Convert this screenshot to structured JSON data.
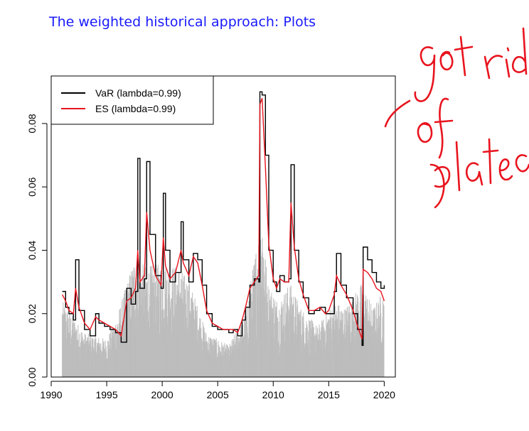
{
  "slide": {
    "title": "The weighted historical approach: Plots"
  },
  "annotation": {
    "handwritten_text": "got rid of plateaus",
    "ink_color": "#e8141e"
  },
  "chart_data": {
    "type": "line",
    "title": "",
    "xlabel": "",
    "ylabel": "",
    "xlim": [
      1990,
      2021
    ],
    "ylim": [
      0,
      0.095
    ],
    "x_ticks": [
      1990,
      1995,
      2000,
      2005,
      2010,
      2015,
      2020
    ],
    "x_tick_labels": [
      "1990",
      "1995",
      "2000",
      "2005",
      "2010",
      "2015",
      "2020"
    ],
    "y_ticks": [
      0,
      0.02,
      0.04,
      0.06,
      0.08
    ],
    "y_tick_labels": [
      "0.00",
      "0.02",
      "0.04",
      "0.06",
      "0.08"
    ],
    "legend_position": "top-left",
    "grid": false,
    "background_bars": {
      "description": "absolute daily losses shown as grey vertical bars",
      "color": "#bdbdbd",
      "x": [
        1991.0,
        1993.0,
        1995.0,
        1996.0,
        1997.5,
        1998.5,
        2000.0,
        2001.5,
        2002.5,
        2004.0,
        2006.0,
        2007.5,
        2008.5,
        2009.0,
        2009.5,
        2010.5,
        2011.5,
        2012.5,
        2014.0,
        2015.5,
        2016.5,
        2018.0,
        2019.0,
        2020.0
      ],
      "upper_envelope": [
        0.024,
        0.014,
        0.012,
        0.02,
        0.038,
        0.035,
        0.036,
        0.035,
        0.03,
        0.014,
        0.01,
        0.02,
        0.042,
        0.053,
        0.03,
        0.024,
        0.03,
        0.022,
        0.016,
        0.024,
        0.022,
        0.03,
        0.022,
        0.028
      ]
    },
    "series": [
      {
        "name": "VaR (lambda=0.99)",
        "color": "#000000",
        "x": [
          1991.0,
          1991.3,
          1991.6,
          1992.0,
          1992.2,
          1992.5,
          1993.0,
          1993.5,
          1994.0,
          1994.3,
          1994.8,
          1995.3,
          1995.8,
          1996.3,
          1996.8,
          1997.2,
          1997.6,
          1997.8,
          1998.0,
          1998.4,
          1998.6,
          1998.9,
          1999.4,
          1999.9,
          2000.1,
          2000.3,
          2000.7,
          2001.2,
          2001.7,
          2001.9,
          2002.4,
          2002.8,
          2003.2,
          2003.6,
          2004.0,
          2004.5,
          2005.0,
          2005.5,
          2006.0,
          2006.4,
          2006.8,
          2007.2,
          2007.5,
          2007.9,
          2008.3,
          2008.7,
          2008.8,
          2009.0,
          2009.3,
          2009.6,
          2010.0,
          2010.3,
          2010.6,
          2011.0,
          2011.4,
          2011.6,
          2011.9,
          2012.3,
          2012.7,
          2013.2,
          2013.7,
          2014.2,
          2014.7,
          2015.0,
          2015.5,
          2015.7,
          2016.1,
          2016.6,
          2017.2,
          2017.6,
          2018.0,
          2018.1,
          2018.5,
          2018.9,
          2019.3,
          2019.7,
          2020.0
        ],
        "values": [
          0.027,
          0.022,
          0.02,
          0.018,
          0.037,
          0.021,
          0.015,
          0.013,
          0.02,
          0.017,
          0.016,
          0.015,
          0.014,
          0.011,
          0.028,
          0.023,
          0.027,
          0.069,
          0.028,
          0.031,
          0.068,
          0.045,
          0.032,
          0.028,
          0.058,
          0.04,
          0.03,
          0.033,
          0.049,
          0.037,
          0.03,
          0.039,
          0.037,
          0.029,
          0.02,
          0.016,
          0.015,
          0.015,
          0.014,
          0.015,
          0.013,
          0.018,
          0.022,
          0.029,
          0.031,
          0.03,
          0.09,
          0.089,
          0.07,
          0.04,
          0.03,
          0.027,
          0.032,
          0.03,
          0.031,
          0.067,
          0.04,
          0.03,
          0.025,
          0.02,
          0.021,
          0.022,
          0.02,
          0.02,
          0.027,
          0.039,
          0.029,
          0.025,
          0.02,
          0.015,
          0.01,
          0.041,
          0.037,
          0.033,
          0.03,
          0.028,
          0.029
        ]
      },
      {
        "name": "ES (lambda=0.99)",
        "color": "#e8141e",
        "x": [
          1991.0,
          1991.3,
          1991.6,
          1992.0,
          1992.2,
          1992.5,
          1993.0,
          1993.5,
          1994.0,
          1994.3,
          1994.8,
          1995.3,
          1995.8,
          1996.3,
          1996.8,
          1997.2,
          1997.6,
          1997.8,
          1998.0,
          1998.4,
          1998.6,
          1998.9,
          1999.4,
          1999.9,
          2000.1,
          2000.3,
          2000.7,
          2001.2,
          2001.7,
          2001.9,
          2002.4,
          2002.8,
          2003.2,
          2003.6,
          2004.0,
          2004.5,
          2005.0,
          2005.5,
          2006.0,
          2006.4,
          2006.8,
          2007.2,
          2007.5,
          2007.9,
          2008.3,
          2008.7,
          2008.8,
          2009.0,
          2009.3,
          2009.6,
          2010.0,
          2010.3,
          2010.6,
          2011.0,
          2011.4,
          2011.6,
          2011.9,
          2012.3,
          2012.7,
          2013.2,
          2013.7,
          2014.2,
          2014.7,
          2015.0,
          2015.5,
          2015.7,
          2016.1,
          2016.6,
          2017.2,
          2017.6,
          2018.0,
          2018.1,
          2018.5,
          2018.9,
          2019.3,
          2019.7,
          2020.0
        ],
        "values": [
          0.026,
          0.024,
          0.021,
          0.02,
          0.028,
          0.022,
          0.017,
          0.015,
          0.019,
          0.018,
          0.017,
          0.016,
          0.015,
          0.013,
          0.024,
          0.025,
          0.028,
          0.04,
          0.03,
          0.032,
          0.052,
          0.04,
          0.032,
          0.029,
          0.044,
          0.035,
          0.031,
          0.033,
          0.04,
          0.036,
          0.032,
          0.038,
          0.036,
          0.029,
          0.021,
          0.017,
          0.016,
          0.015,
          0.015,
          0.015,
          0.014,
          0.018,
          0.022,
          0.028,
          0.03,
          0.032,
          0.086,
          0.088,
          0.066,
          0.042,
          0.031,
          0.028,
          0.031,
          0.03,
          0.03,
          0.055,
          0.041,
          0.031,
          0.026,
          0.021,
          0.021,
          0.022,
          0.02,
          0.021,
          0.026,
          0.032,
          0.029,
          0.026,
          0.021,
          0.016,
          0.012,
          0.034,
          0.033,
          0.031,
          0.028,
          0.027,
          0.024
        ]
      }
    ]
  }
}
